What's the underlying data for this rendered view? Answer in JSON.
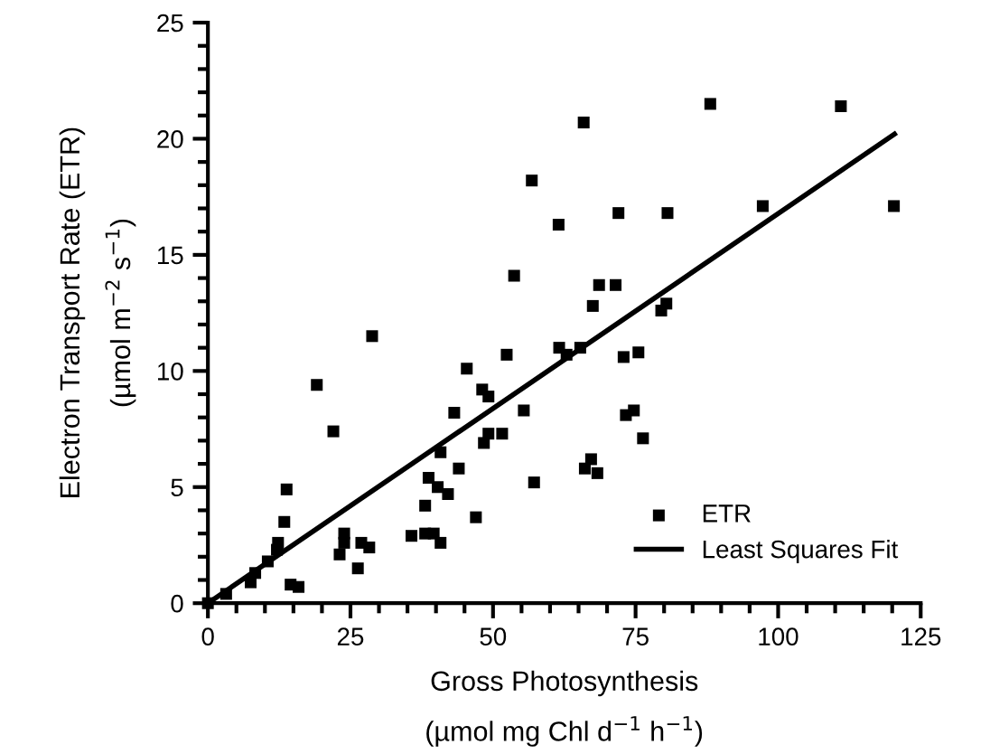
{
  "chart_data": {
    "type": "scatter",
    "xlabel": "Gross Photosynthesis\n(µmol mg Chl d$^{−1}$ h$^{−1}$)",
    "ylabel": "Electron Transport Rate (ETR)\n(µmol m$^{−2}$ s$^{−1}$)",
    "xlim": [
      0,
      125
    ],
    "ylim": [
      0,
      25
    ],
    "xticks": [
      0,
      25,
      50,
      75,
      100,
      125
    ],
    "yticks": [
      0,
      5,
      10,
      15,
      20,
      25
    ],
    "grid": false,
    "legend": "bottom right",
    "marker": "square",
    "series": [
      {
        "name": "ETR",
        "color": "#000000",
        "x": [
          0,
          3.2,
          7.5,
          8.3,
          10.5,
          12.1,
          12.3,
          13.4,
          13.8,
          14.5,
          15.9,
          19.1,
          22.0,
          23.1,
          23.9,
          23.9,
          26.3,
          26.9,
          28.3,
          28.8,
          35.7,
          38.1,
          39.6,
          40.8,
          38.1,
          38.7,
          40.3,
          42.1,
          40.8,
          44.0,
          43.2,
          47.0,
          45.4,
          48.1,
          49.2,
          48.4,
          49.2,
          51.6,
          52.4,
          53.7,
          55.4,
          56.8,
          57.2,
          61.5,
          61.6,
          62.9,
          65.3,
          65.9,
          66.1,
          67.2,
          68.3,
          67.5,
          68.6,
          71.5,
          72.0,
          72.9,
          75.5,
          73.3,
          74.7,
          76.3,
          79.5,
          80.4,
          80.6,
          88.1,
          97.3,
          111.0,
          120.3
        ],
        "values": [
          0,
          0.4,
          0.9,
          1.3,
          1.8,
          2.3,
          2.6,
          3.5,
          4.9,
          0.8,
          0.7,
          9.4,
          7.4,
          2.1,
          2.6,
          3.0,
          1.5,
          2.6,
          2.4,
          11.5,
          2.9,
          3.0,
          3.0,
          2.6,
          4.2,
          5.4,
          5.0,
          4.7,
          6.5,
          5.8,
          8.2,
          3.7,
          10.1,
          9.2,
          8.9,
          6.9,
          7.3,
          7.3,
          10.7,
          14.1,
          8.3,
          18.2,
          5.2,
          16.3,
          11.0,
          10.7,
          11.0,
          20.7,
          5.8,
          6.2,
          5.6,
          12.8,
          13.7,
          13.7,
          16.8,
          10.6,
          10.8,
          8.1,
          8.3,
          7.1,
          12.6,
          12.9,
          16.8,
          21.5,
          17.1,
          21.4,
          17.1
        ]
      },
      {
        "name": "Least Squares Fit",
        "type": "line",
        "color": "#000000",
        "marker": "none",
        "line_style": "solid",
        "x": [
          0,
          120.4
        ],
        "values": [
          0,
          20.2
        ]
      }
    ]
  }
}
